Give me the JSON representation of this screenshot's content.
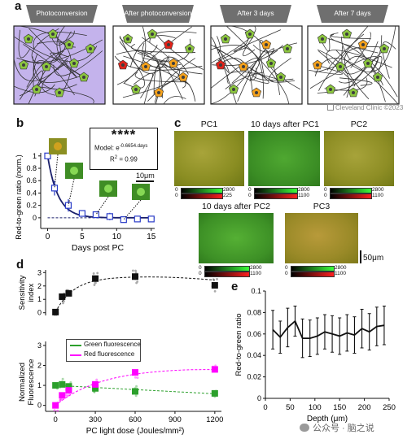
{
  "panel_labels": {
    "a": "a",
    "b": "b",
    "c": "c",
    "d": "d",
    "e": "e"
  },
  "panel_a": {
    "tabs": [
      "Photoconversion",
      "After photoconversion",
      "After 3 days",
      "After 7 days"
    ],
    "credit": "Cleveland Clinic ©2023",
    "colors": {
      "lilac": "#c4b3ec",
      "neuron_green": "#8cc63f",
      "neuron_red": "#e2231a",
      "neuron_orange": "#f5a21c",
      "tab_grey": "#6f6f6f"
    }
  },
  "panel_b": {
    "stars": "****",
    "model_prefix": "Model: e",
    "model_exponent": "-0.6654.days",
    "r2_label": "R",
    "r2_sup": "2",
    "r2_value": " = 0.99",
    "scalebar": "10μm"
  },
  "panel_c": {
    "titles": [
      "PC1",
      "10 days after PC1",
      "PC2",
      "10 days after PC2",
      "PC3"
    ],
    "scalebar": "50μm",
    "colorbars": [
      [
        "0",
        "2800",
        "0",
        "225"
      ],
      [
        "0",
        "2800",
        "0",
        "1100"
      ],
      [
        "0",
        "2800",
        "0",
        "1100"
      ],
      [
        "0",
        "2800",
        "0",
        "1100"
      ],
      [
        "0",
        "2800",
        "0",
        "1100"
      ]
    ]
  },
  "panel_d": {
    "legend": [
      "Green fluorescence",
      "Red fluorescence"
    ],
    "colors": {
      "green": "#2ca02c",
      "magenta": "#ff00ff"
    }
  },
  "watermark": "公众号 · 脑之说",
  "chart_data": [
    {
      "type": "line",
      "xlabel": "Days post PC",
      "ylabel": "Red-to-green ratio (norm.)",
      "xlim": [
        0,
        15
      ],
      "ylim": [
        0,
        1
      ],
      "xticks": [
        "0",
        "5",
        "10",
        "15"
      ],
      "yticks": [
        "0",
        "0.2",
        "0.4",
        "0.6",
        "0.8",
        "1"
      ],
      "series": [
        {
          "x": [
            0,
            1,
            3,
            5,
            7,
            9,
            11,
            13,
            15
          ],
          "values": [
            1.0,
            0.48,
            0.2,
            0.07,
            0.05,
            0.02,
            -0.03,
            -0.02,
            -0.02
          ],
          "err": [
            0.0,
            0.12,
            0.1,
            0.04,
            0.04,
            0.06,
            0.03,
            0.03,
            0.03
          ]
        }
      ],
      "fit": "exp(-0.6654*days)"
    },
    {
      "type": "scatter",
      "ylabel": "Sensitivity index",
      "xlim": [
        -50,
        1250
      ],
      "ylim": [
        -0.2,
        3.2
      ],
      "yticks": [
        "0",
        "1",
        "2",
        "3"
      ],
      "series": [
        {
          "x": [
            0,
            50,
            100,
            300,
            600,
            1200
          ],
          "values": [
            0.05,
            1.2,
            1.45,
            2.55,
            2.7,
            2.05
          ]
        }
      ]
    },
    {
      "type": "scatter",
      "xlabel": "PC light dose (Joules/mm²)",
      "ylabel": "Normalized Fluorescence",
      "xlim": [
        -50,
        1250
      ],
      "ylim": [
        -0.3,
        3.2
      ],
      "xticks": [
        "0",
        "300",
        "600",
        "900",
        "1200"
      ],
      "yticks": [
        "0",
        "1",
        "2",
        "3"
      ],
      "series": [
        {
          "name": "Green fluorescence",
          "x": [
            0,
            50,
            100,
            300,
            600,
            1200
          ],
          "values": [
            1.0,
            1.05,
            0.95,
            0.85,
            0.7,
            0.6
          ]
        },
        {
          "name": "Red fluorescence",
          "x": [
            0,
            50,
            100,
            300,
            600,
            1200
          ],
          "values": [
            0.0,
            0.5,
            0.75,
            1.05,
            1.65,
            1.8
          ]
        }
      ]
    },
    {
      "type": "line",
      "xlabel": "Depth (μm)",
      "ylabel": "Red-to-green ratio",
      "xlim": [
        0,
        250
      ],
      "ylim": [
        0,
        0.1
      ],
      "xticks": [
        "0",
        "50",
        "100",
        "150",
        "200",
        "250"
      ],
      "yticks": [
        "0",
        "0.02",
        "0.04",
        "0.06",
        "0.08",
        "0.1"
      ],
      "series": [
        {
          "x": [
            15,
            30,
            45,
            60,
            75,
            90,
            105,
            120,
            135,
            150,
            165,
            180,
            195,
            210,
            225,
            240
          ],
          "values": [
            0.064,
            0.057,
            0.066,
            0.072,
            0.056,
            0.056,
            0.058,
            0.062,
            0.06,
            0.058,
            0.061,
            0.059,
            0.065,
            0.062,
            0.067,
            0.068
          ],
          "err": [
            0.018,
            0.015,
            0.018,
            0.014,
            0.018,
            0.017,
            0.017,
            0.016,
            0.017,
            0.017,
            0.017,
            0.017,
            0.018,
            0.017,
            0.018,
            0.018
          ]
        }
      ]
    }
  ]
}
